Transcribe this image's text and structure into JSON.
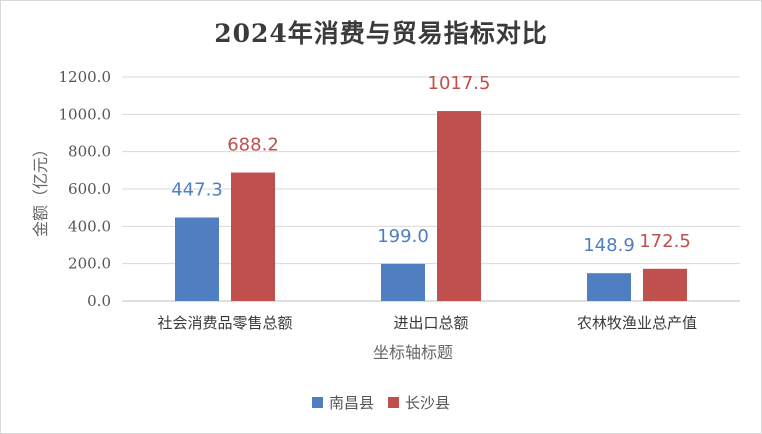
{
  "chart_data": {
    "type": "bar",
    "title": "2024年消费与贸易指标对比",
    "xlabel": "坐标轴标题",
    "ylabel": "金额（亿元）",
    "categories": [
      "社会消费品零售总额",
      "进出口总额",
      "农林牧渔业总产值"
    ],
    "series": [
      {
        "name": "南昌县",
        "values": [
          447.3,
          199.0,
          148.9
        ],
        "color": "#4f7ec1"
      },
      {
        "name": "长沙县",
        "values": [
          688.2,
          1017.5,
          172.5
        ],
        "color": "#c0504d"
      }
    ],
    "ylim": [
      0,
      1200
    ],
    "yticks": [
      "0.0",
      "200.0",
      "400.0",
      "600.0",
      "800.0",
      "1000.0",
      "1200.0"
    ],
    "grid": true,
    "legend_position": "bottom"
  }
}
